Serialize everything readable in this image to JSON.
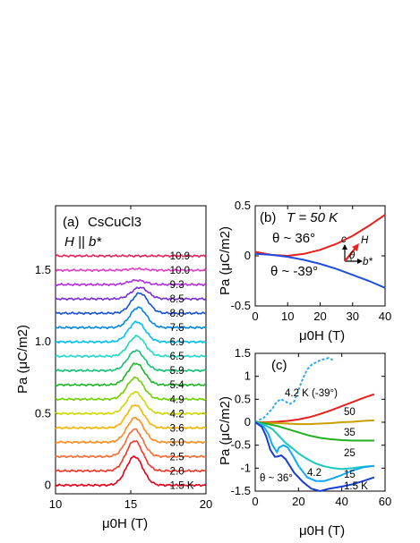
{
  "chart_data": [
    {
      "panel": "a",
      "type": "line",
      "panel_label": "(a)",
      "title": "CsCuCl3",
      "field_dir": "H || b*",
      "xlabel": "μ0H (T)",
      "ylabel": "Pa (μC/m2)",
      "xlim": [
        10,
        20
      ],
      "ylim": [
        -0.06,
        1.95
      ],
      "xticks": [
        10,
        15,
        20
      ],
      "yticks": [
        0,
        0.5,
        1.0,
        1.5
      ],
      "note": "curves vertically offset by 0.1 per temperature step",
      "series": [
        {
          "name": "1.5 K",
          "color": "#e8001a",
          "offset": 0.0,
          "amp": 0.2,
          "center": 15.25
        },
        {
          "name": "2.0",
          "color": "#f2352a",
          "offset": 0.1,
          "amp": 0.21,
          "center": 15.25
        },
        {
          "name": "2.5",
          "color": "#f96a32",
          "offset": 0.2,
          "amp": 0.19,
          "center": 15.25
        },
        {
          "name": "3.0",
          "color": "#ff8c1a",
          "offset": 0.3,
          "amp": 0.17,
          "center": 15.3
        },
        {
          "name": "3.6",
          "color": "#f4b400",
          "offset": 0.4,
          "amp": 0.16,
          "center": 15.3
        },
        {
          "name": "4.2",
          "color": "#cfd800",
          "offset": 0.5,
          "amp": 0.15,
          "center": 15.3
        },
        {
          "name": "4.9",
          "color": "#6fd000",
          "offset": 0.6,
          "amp": 0.15,
          "center": 15.3
        },
        {
          "name": "5.4",
          "color": "#1fb528",
          "offset": 0.7,
          "amp": 0.15,
          "center": 15.35
        },
        {
          "name": "5.9",
          "color": "#14c07a",
          "offset": 0.8,
          "amp": 0.14,
          "center": 15.35
        },
        {
          "name": "6.5",
          "color": "#1ed8c8",
          "offset": 0.9,
          "amp": 0.14,
          "center": 15.4
        },
        {
          "name": "6.9",
          "color": "#00c0f0",
          "offset": 1.0,
          "amp": 0.14,
          "center": 15.4
        },
        {
          "name": "7.5",
          "color": "#0088e0",
          "offset": 1.1,
          "amp": 0.14,
          "center": 15.5
        },
        {
          "name": "8.0",
          "color": "#1a4fd8",
          "offset": 1.2,
          "amp": 0.14,
          "center": 15.6
        },
        {
          "name": "8.5",
          "color": "#7a2ed8",
          "offset": 1.3,
          "amp": 0.08,
          "center": 15.6
        },
        {
          "name": "9.3",
          "color": "#b02ee0",
          "offset": 1.4,
          "amp": 0.03,
          "center": 15.4
        },
        {
          "name": "10.0",
          "color": "#e040c8",
          "offset": 1.5,
          "amp": 0.01,
          "center": 15.4
        },
        {
          "name": "10.9",
          "color": "#e8245a",
          "offset": 1.6,
          "amp": 0.0,
          "center": 15.4
        }
      ]
    },
    {
      "panel": "b",
      "type": "line",
      "panel_label": "(b)",
      "condition": "T = 50 K",
      "xlabel": "μ0H (T)",
      "ylabel": "Pa (μC/m2)",
      "xlim": [
        0,
        40
      ],
      "ylim": [
        -0.5,
        0.5
      ],
      "xticks": [
        0,
        10,
        20,
        30,
        40
      ],
      "yticks": [
        -0.5,
        0,
        0.5
      ],
      "inset_labels": {
        "c": "c",
        "H": "H",
        "theta": "θ",
        "b": "b*"
      },
      "series": [
        {
          "name": "θ ~ 36°",
          "color": "#e8201e",
          "x": [
            0,
            5,
            10,
            15,
            20,
            25,
            30,
            35,
            40
          ],
          "y": [
            0.04,
            0.01,
            0.0,
            0.02,
            0.06,
            0.12,
            0.2,
            0.3,
            0.41
          ]
        },
        {
          "name": "θ ~ -39°",
          "color": "#1e4fe0",
          "x": [
            0,
            5,
            10,
            15,
            20,
            25,
            30,
            35,
            40
          ],
          "y": [
            0.02,
            0.01,
            -0.01,
            -0.04,
            -0.08,
            -0.13,
            -0.19,
            -0.25,
            -0.32
          ]
        }
      ]
    },
    {
      "panel": "c",
      "type": "line",
      "panel_label": "(c)",
      "xlabel": "μ0H (T)",
      "ylabel": "Pa (μC/m2)",
      "xlim": [
        0,
        60
      ],
      "ylim": [
        -1.5,
        1.5
      ],
      "xticks": [
        0,
        20,
        40,
        60
      ],
      "yticks": [
        -1.5,
        -1.0,
        -0.5,
        0,
        0.5,
        1.0,
        1.5
      ],
      "angle_note": "θ ~ 36°",
      "series": [
        {
          "name": "4.2 K (-39°)",
          "color": "#34a8e8",
          "dashed": true,
          "x": [
            0,
            4,
            8,
            10,
            12,
            14,
            16,
            18,
            20,
            22,
            24,
            26,
            28,
            30,
            34,
            36
          ],
          "y": [
            0,
            0.1,
            0.3,
            0.45,
            0.5,
            0.45,
            0.4,
            0.45,
            0.7,
            0.95,
            1.15,
            1.25,
            1.3,
            1.35,
            1.4,
            1.35
          ]
        },
        {
          "name": "50",
          "color": "#e8201e",
          "x": [
            0,
            5,
            10,
            15,
            20,
            25,
            30,
            35,
            40,
            45,
            50,
            55
          ],
          "y": [
            0.0,
            0.0,
            0.01,
            0.03,
            0.06,
            0.11,
            0.18,
            0.26,
            0.35,
            0.44,
            0.53,
            0.61
          ]
        },
        {
          "name": "35",
          "color": "#c8a000",
          "x": [
            0,
            5,
            10,
            15,
            20,
            25,
            30,
            35,
            40,
            45,
            50,
            55
          ],
          "y": [
            0.0,
            -0.01,
            -0.02,
            -0.03,
            -0.04,
            -0.04,
            -0.03,
            -0.02,
            0.0,
            0.01,
            0.03,
            0.04
          ]
        },
        {
          "name": "25",
          "color": "#22b022",
          "x": [
            0,
            5,
            10,
            15,
            20,
            25,
            30,
            35,
            40,
            45,
            50,
            55
          ],
          "y": [
            0.0,
            -0.03,
            -0.08,
            -0.15,
            -0.22,
            -0.29,
            -0.34,
            -0.37,
            -0.39,
            -0.4,
            -0.4,
            -0.4
          ]
        },
        {
          "name": "15",
          "color": "#18c8c0",
          "x": [
            0,
            4,
            8,
            10,
            12,
            14,
            16,
            18,
            20,
            24,
            28,
            32,
            36,
            40,
            45,
            50,
            55
          ],
          "y": [
            0.0,
            -0.05,
            -0.15,
            -0.25,
            -0.35,
            -0.45,
            -0.52,
            -0.6,
            -0.68,
            -0.8,
            -0.9,
            -0.96,
            -1.0,
            -1.02,
            -1.0,
            -0.97,
            -0.95
          ]
        },
        {
          "name": "4.2",
          "color": "#10a8ff",
          "x": [
            0,
            4,
            6,
            8,
            10,
            11,
            13,
            15,
            17,
            20,
            24,
            28,
            32,
            36,
            40,
            45,
            50,
            55
          ],
          "y": [
            0.0,
            -0.1,
            -0.25,
            -0.5,
            -0.65,
            -0.55,
            -0.5,
            -0.55,
            -0.7,
            -0.95,
            -1.2,
            -1.28,
            -1.28,
            -1.22,
            -1.15,
            -1.05,
            -0.98,
            -0.95
          ]
        },
        {
          "name": "1.5 K",
          "color": "#1a3fd0",
          "x": [
            0,
            3,
            5,
            7,
            9,
            10,
            12,
            14,
            16,
            18,
            22,
            26,
            30,
            34,
            40,
            45,
            50,
            55
          ],
          "y": [
            0.0,
            -0.1,
            -0.3,
            -0.6,
            -0.75,
            -0.75,
            -0.72,
            -0.8,
            -0.95,
            -1.1,
            -1.3,
            -1.45,
            -1.5,
            -1.45,
            -1.4,
            -1.35,
            -1.28,
            -1.2
          ]
        }
      ]
    }
  ]
}
